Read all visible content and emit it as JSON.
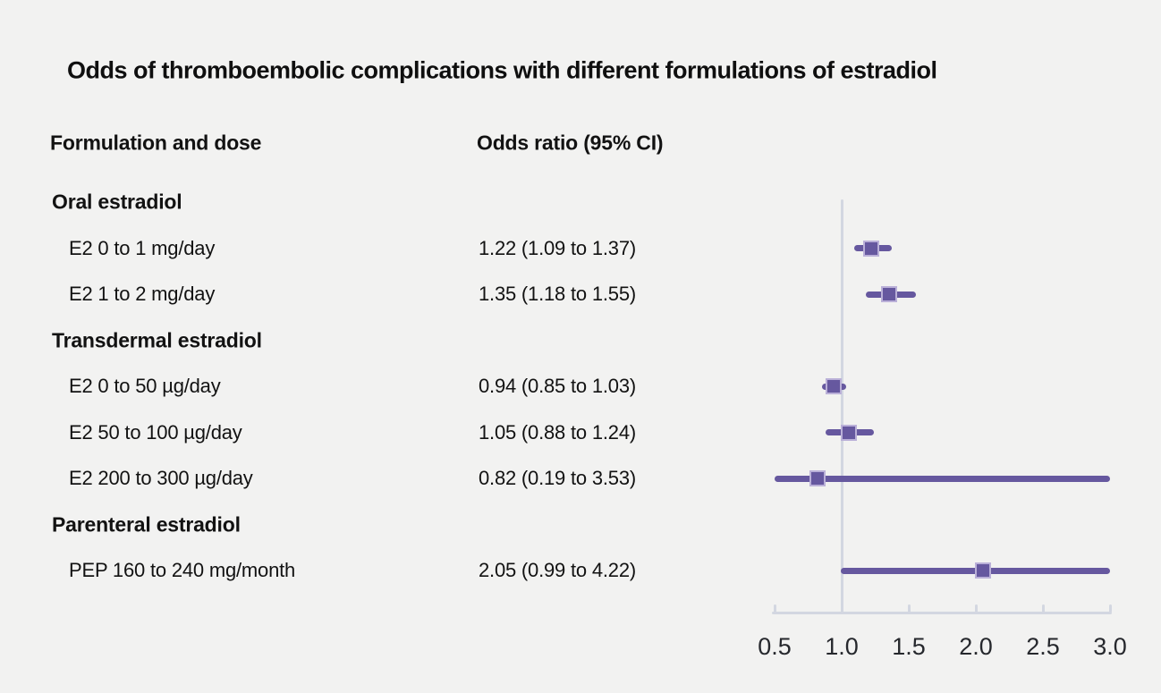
{
  "title": "Odds of thromboembolic complications with different formulations of estradiol",
  "columns": {
    "formulation": "Formulation and dose",
    "odds_ratio": "Odds ratio (95% CI)"
  },
  "chart_data": {
    "type": "forest",
    "title": "Odds of thromboembolic complications with different formulations of estradiol",
    "xlim": [
      0.5,
      3.0
    ],
    "reference_line": 1.0,
    "axis_ticks": [
      0.5,
      1.0,
      1.5,
      2.0,
      2.5,
      3.0
    ],
    "axis_tick_labels": [
      "0.5",
      "1.0",
      "1.5",
      "2.0",
      "2.5",
      "3.0"
    ],
    "legend": "none",
    "grid": "off",
    "groups": [
      {
        "label": "Oral estradiol",
        "rows": [
          {
            "label": "E2 0 to 1 mg/day",
            "value_text": "1.22 (1.09 to 1.37)",
            "or": 1.22,
            "ci_low": 1.09,
            "ci_high": 1.37
          },
          {
            "label": "E2 1 to 2 mg/day",
            "value_text": "1.35 (1.18 to 1.55)",
            "or": 1.35,
            "ci_low": 1.18,
            "ci_high": 1.55
          }
        ]
      },
      {
        "label": "Transdermal estradiol",
        "rows": [
          {
            "label": "E2 0 to 50 µg/day",
            "value_text": "0.94 (0.85 to 1.03)",
            "or": 0.94,
            "ci_low": 0.85,
            "ci_high": 1.03
          },
          {
            "label": "E2 50 to 100 µg/day",
            "value_text": "1.05 (0.88 to 1.24)",
            "or": 1.05,
            "ci_low": 0.88,
            "ci_high": 1.24
          },
          {
            "label": "E2 200 to 300 µg/day",
            "value_text": "0.82 (0.19 to 3.53)",
            "or": 0.82,
            "ci_low": 0.19,
            "ci_high": 3.53
          }
        ]
      },
      {
        "label": "Parenteral estradiol",
        "rows": [
          {
            "label": "PEP 160 to 240 mg/month",
            "value_text": "2.05 (0.99 to 4.22)",
            "or": 2.05,
            "ci_low": 0.99,
            "ci_high": 4.22
          }
        ]
      }
    ],
    "colors": {
      "background": "#f2f2f1",
      "text": "#121212",
      "ci_line": "#66589f",
      "marker_fill": "#66589f",
      "marker_edge": "#bab0d8",
      "axis_line": "#d3d7e1",
      "reference_line": "#d3d7e1"
    }
  }
}
